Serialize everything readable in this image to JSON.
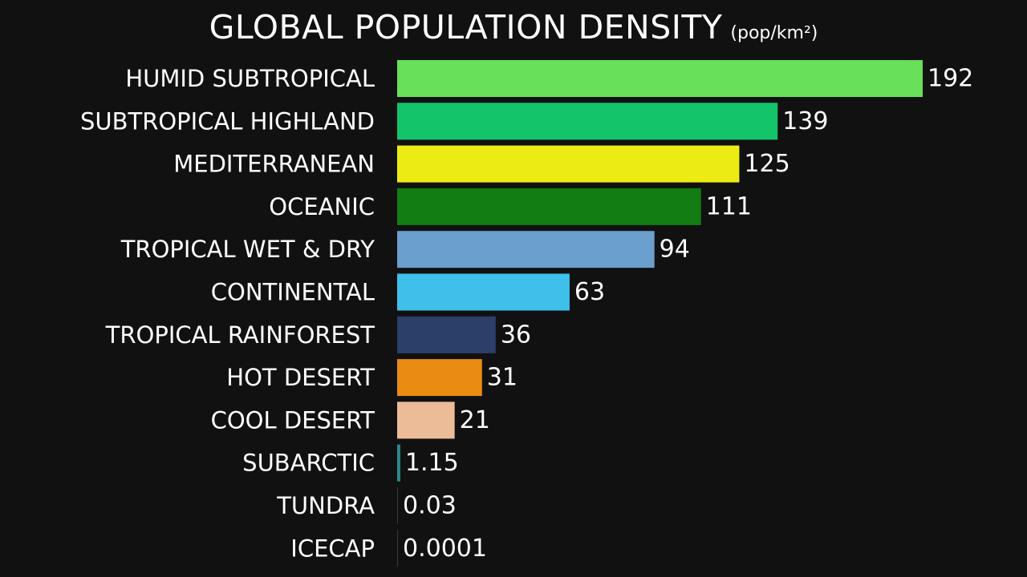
{
  "chart_data": {
    "type": "bar",
    "orientation": "horizontal",
    "title": "GLOBAL POPULATION DENSITY",
    "unit_label": "(pop/km²)",
    "xlabel": "",
    "ylabel": "",
    "xlim": [
      0,
      192
    ],
    "grid": false,
    "legend": "none",
    "categories": [
      "HUMID SUBTROPICAL",
      "SUBTROPICAL HIGHLAND",
      "MEDITERRANEAN",
      "OCEANIC",
      "TROPICAL WET & DRY",
      "CONTINENTAL",
      "TROPICAL RAINFOREST",
      "HOT DESERT",
      "COOL DESERT",
      "SUBARCTIC",
      "TUNDRA",
      "ICECAP"
    ],
    "values": [
      192,
      139,
      125,
      111,
      94,
      63,
      36,
      31,
      21,
      1.15,
      0.03,
      0.0001
    ],
    "value_labels": [
      "192",
      "139",
      "125",
      "111",
      "94",
      "63",
      "36",
      "31",
      "21",
      "1.15",
      "0.03",
      "0.0001"
    ],
    "colors": [
      "#69e05a",
      "#14c46b",
      "#ecec14",
      "#127d12",
      "#6b9fce",
      "#3ec0ea",
      "#2b3f69",
      "#ea8c12",
      "#ecbc98",
      "#2a8a8c",
      "#3a3a3a",
      "#3a3a3a"
    ]
  }
}
